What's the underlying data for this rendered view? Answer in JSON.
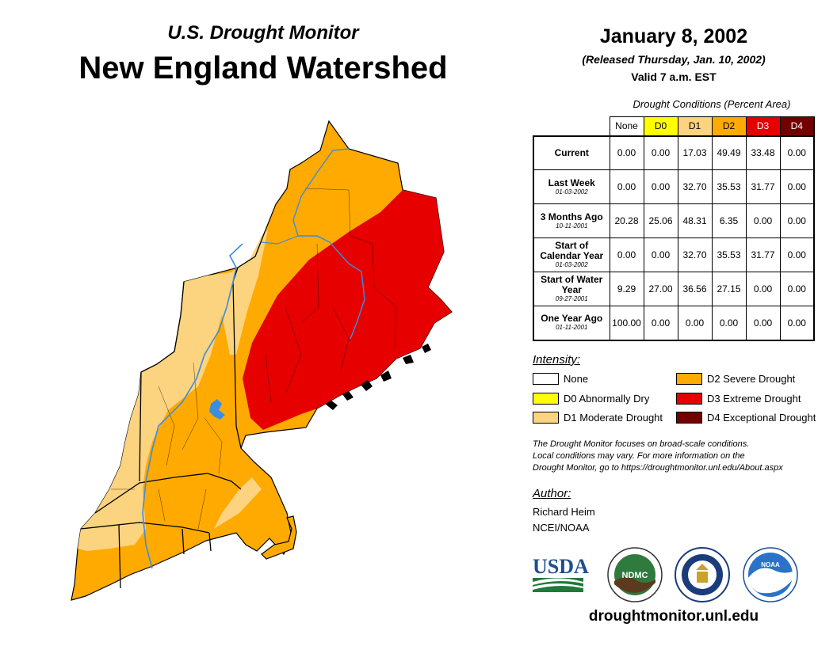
{
  "header": {
    "subtitle": "U.S. Drought Monitor",
    "title": "New England Watershed",
    "date": "January 8, 2002",
    "released": "(Released Thursday, Jan. 10, 2002)",
    "valid": "Valid 7 a.m. EST"
  },
  "table": {
    "caption": "Drought Conditions (Percent Area)",
    "columns": [
      "None",
      "D0",
      "D1",
      "D2",
      "D3",
      "D4"
    ],
    "column_colors": [
      "#ffffff",
      "#ffff00",
      "#fcd37f",
      "#ffaa00",
      "#e60000",
      "#730000"
    ],
    "rows": [
      {
        "label": "Current",
        "date": "",
        "values": [
          "0.00",
          "0.00",
          "17.03",
          "49.49",
          "33.48",
          "0.00"
        ]
      },
      {
        "label": "Last Week",
        "date": "01-03-2002",
        "values": [
          "0.00",
          "0.00",
          "32.70",
          "35.53",
          "31.77",
          "0.00"
        ]
      },
      {
        "label": "3 Months Ago",
        "date": "10-11-2001",
        "values": [
          "20.28",
          "25.06",
          "48.31",
          "6.35",
          "0.00",
          "0.00"
        ]
      },
      {
        "label": "Start of Calendar Year",
        "date": "01-03-2002",
        "values": [
          "0.00",
          "0.00",
          "32.70",
          "35.53",
          "31.77",
          "0.00"
        ]
      },
      {
        "label": "Start of Water Year",
        "date": "09-27-2001",
        "values": [
          "9.29",
          "27.00",
          "36.56",
          "27.15",
          "0.00",
          "0.00"
        ]
      },
      {
        "label": "One Year Ago",
        "date": "01-11-2001",
        "values": [
          "100.00",
          "0.00",
          "0.00",
          "0.00",
          "0.00",
          "0.00"
        ]
      }
    ]
  },
  "legend": {
    "title": "Intensity:",
    "items": [
      {
        "label": "None",
        "color": "#ffffff"
      },
      {
        "label": "D0 Abnormally Dry",
        "color": "#ffff00"
      },
      {
        "label": "D1 Moderate Drought",
        "color": "#fcd37f"
      },
      {
        "label": "D2 Severe Drought",
        "color": "#ffaa00"
      },
      {
        "label": "D3 Extreme Drought",
        "color": "#e60000"
      },
      {
        "label": "D4 Exceptional Drought",
        "color": "#730000"
      }
    ]
  },
  "note": {
    "line1": "The Drought Monitor focuses on broad-scale conditions.",
    "line2": "Local conditions may vary. For more information on the",
    "line3": "Drought Monitor, go to https://droughtmonitor.unl.edu/About.aspx"
  },
  "author": {
    "heading": "Author:",
    "name": "Richard Heim",
    "org": "NCEI/NOAA"
  },
  "logos": {
    "usda": "USDA",
    "ndmc": "NDMC",
    "noaa": "NOAA"
  },
  "footer": {
    "site": "droughtmonitor.unl.edu"
  },
  "map": {
    "colors": {
      "d1": "#fcd37f",
      "d2": "#ffaa00",
      "d3": "#e60000",
      "river": "#3c8ce0",
      "border": "#000000"
    }
  }
}
